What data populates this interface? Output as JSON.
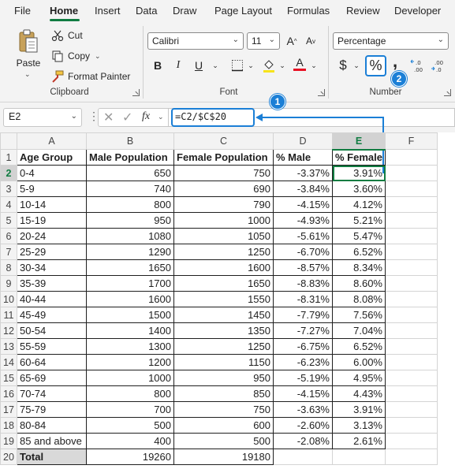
{
  "menu": {
    "tabs": [
      "File",
      "Home",
      "Insert",
      "Data",
      "Draw",
      "Page Layout",
      "Formulas",
      "Review",
      "Developer"
    ],
    "active": "Home"
  },
  "clipboard": {
    "paste_label": "Paste",
    "cut_label": "Cut",
    "copy_label": "Copy",
    "format_painter_label": "Format Painter",
    "group_label": "Clipboard"
  },
  "font": {
    "font_name": "Calibri",
    "font_size": "11",
    "grow_label": "A",
    "shrink_label": "A",
    "bold_label": "B",
    "italic_label": "I",
    "underline_label": "U",
    "font_color_label": "A",
    "group_label": "Font"
  },
  "number": {
    "format": "Percentage",
    "currency_label": "$",
    "percent_label": "%",
    "comma_label": ",",
    "group_label": "Number"
  },
  "formula_bar": {
    "name_box": "E2",
    "fx_label": "fx",
    "formula": "=C2/$C$20"
  },
  "badges": [
    "1",
    "2"
  ],
  "colors": {
    "accent_green": "#107c41",
    "callout_blue": "#1b7fd6"
  },
  "grid": {
    "columns": [
      "A",
      "B",
      "C",
      "D",
      "E",
      "F"
    ],
    "headers": [
      "Age Group",
      "Male Population",
      "Female Population",
      "% Male",
      "% Female"
    ],
    "rows": [
      [
        "0-4",
        "650",
        "750",
        "-3.37%",
        "3.91%"
      ],
      [
        "5-9",
        "740",
        "690",
        "-3.84%",
        "3.60%"
      ],
      [
        "10-14",
        "800",
        "790",
        "-4.15%",
        "4.12%"
      ],
      [
        "15-19",
        "950",
        "1000",
        "-4.93%",
        "5.21%"
      ],
      [
        "20-24",
        "1080",
        "1050",
        "-5.61%",
        "5.47%"
      ],
      [
        "25-29",
        "1290",
        "1250",
        "-6.70%",
        "6.52%"
      ],
      [
        "30-34",
        "1650",
        "1600",
        "-8.57%",
        "8.34%"
      ],
      [
        "35-39",
        "1700",
        "1650",
        "-8.83%",
        "8.60%"
      ],
      [
        "40-44",
        "1600",
        "1550",
        "-8.31%",
        "8.08%"
      ],
      [
        "45-49",
        "1500",
        "1450",
        "-7.79%",
        "7.56%"
      ],
      [
        "50-54",
        "1400",
        "1350",
        "-7.27%",
        "7.04%"
      ],
      [
        "55-59",
        "1300",
        "1250",
        "-6.75%",
        "6.52%"
      ],
      [
        "60-64",
        "1200",
        "1150",
        "-6.23%",
        "6.00%"
      ],
      [
        "65-69",
        "1000",
        "950",
        "-5.19%",
        "4.95%"
      ],
      [
        "70-74",
        "800",
        "850",
        "-4.15%",
        "4.43%"
      ],
      [
        "75-79",
        "700",
        "750",
        "-3.63%",
        "3.91%"
      ],
      [
        "80-84",
        "500",
        "600",
        "-2.60%",
        "3.13%"
      ],
      [
        "85 and above",
        "400",
        "500",
        "-2.08%",
        "2.61%"
      ]
    ],
    "total": [
      "Total",
      "19260",
      "19180"
    ]
  }
}
